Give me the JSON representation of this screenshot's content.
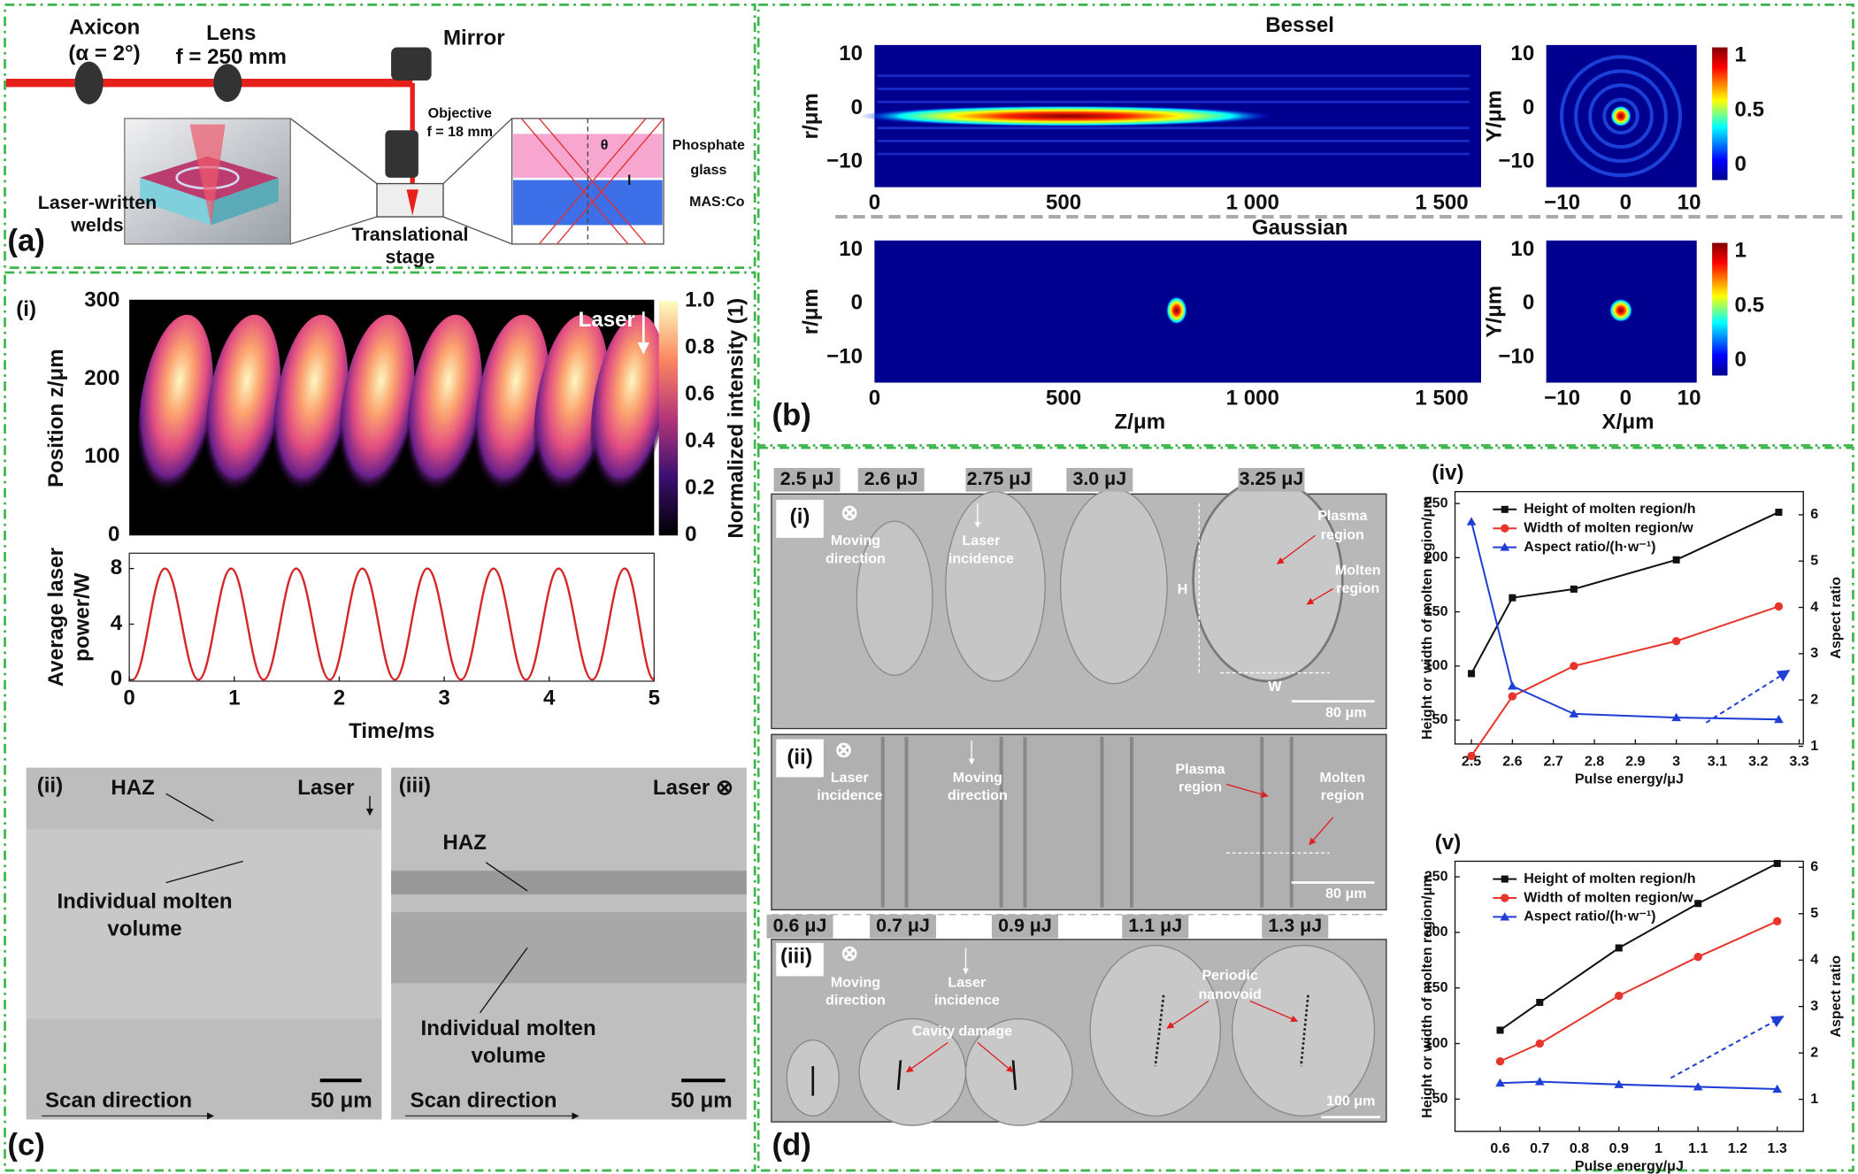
{
  "panel_a": {
    "label": "(a)",
    "axicon": "Axicon",
    "axicon_angle": "(α = 2°)",
    "lens": "Lens",
    "lens_f": "f = 250 mm",
    "mirror": "Mirror",
    "objective": "Objective",
    "objective_f": "f = 18 mm",
    "phosphate": [
      "Phosphate",
      "glass"
    ],
    "mas": "MAS:Co",
    "welds": [
      "Laser-written",
      "welds"
    ],
    "stage": [
      "Translational",
      "stage"
    ],
    "theta": "θ",
    "l": "l"
  },
  "panel_b": {
    "label": "(b)",
    "bessel": "Bessel",
    "gaussian": "Gaussian",
    "r_axis": "r/μm",
    "y_axis": "Y/μm",
    "z_axis": "Z/μm",
    "x_axis": "X/μm",
    "zlim": [
      0,
      1604
    ],
    "zticks": [
      0,
      500,
      {
        "value": 1000,
        "label": "1 000"
      },
      {
        "value": 1500,
        "label": "1 500"
      }
    ],
    "rlim": [
      -14.7,
      11.8
    ],
    "rticks": [
      10,
      0,
      {
        "value": -10,
        "label": "−10"
      }
    ],
    "xlim": [
      -12.5,
      11.2
    ],
    "xticks": [
      {
        "value": -10,
        "label": "−10"
      },
      0,
      10
    ],
    "colorbar_lim": [
      -0.2,
      1.1
    ],
    "colorbar_ticks": [
      1,
      0.5,
      0
    ]
  },
  "panel_c": {
    "label": "(c)",
    "i": "(i)",
    "laser": "Laser",
    "position_axis": "Position z/μm",
    "zlim": [
      0,
      300
    ],
    "zticks": [
      300,
      200,
      100,
      0
    ],
    "intensity_axis": "Normalized intensity (1)",
    "intensity_lim": [
      0,
      1
    ],
    "intensity_ticks": [
      {
        "value": 1,
        "label": "1.0"
      },
      0.8,
      0.6,
      0.4,
      0.2,
      0
    ],
    "ii": "(ii)",
    "iii": "(iii)",
    "haz": "HAZ",
    "laser_ii": "Laser",
    "laser_iii": "Laser ⊗",
    "molten": [
      "Individual molten",
      "volume"
    ],
    "scan": "Scan direction",
    "scale": "50 μm"
  },
  "panel_d": {
    "label": "(d)",
    "cross": "⊗",
    "energies_top": [
      "2.5 μJ",
      "2.6 μJ",
      "2.75 μJ",
      "3.0 μJ",
      "3.25 μJ"
    ],
    "energies_bottom": [
      "0.6 μJ",
      "0.7 μJ",
      "0.9 μJ",
      "1.1 μJ",
      "1.3 μJ"
    ],
    "i": "(i)",
    "ii": "(ii)",
    "iii": "(iii)",
    "moving": [
      "Moving",
      "direction"
    ],
    "incidence": [
      "Laser",
      "incidence"
    ],
    "plasma": [
      "Plasma",
      "region"
    ],
    "molten": [
      "Molten",
      "region"
    ],
    "h": "H",
    "w": "W",
    "scale_80": "80 μm",
    "cavity": "Cavity damage",
    "nanovoid": [
      "Periodic",
      "nanovoid"
    ],
    "scale_100": "100 μm"
  },
  "chart_data": [
    {
      "type": "line",
      "y_label": [
        "Average laser",
        "power/W"
      ],
      "x_label": "Time/ms",
      "x": [
        0.03,
        0.34,
        0.66,
        0.97,
        1.28,
        1.59,
        1.91,
        2.22,
        2.53,
        2.84,
        3.16,
        3.47,
        3.78,
        4.09,
        4.41,
        4.72,
        5.0
      ],
      "series": [
        {
          "color": "#d62728",
          "values": [
            0,
            8,
            0,
            8,
            0,
            8,
            0,
            8,
            0,
            8,
            0,
            8,
            0,
            8,
            0,
            8,
            0
          ]
        }
      ],
      "xlim": [
        0,
        5
      ],
      "xticks": [
        0,
        1,
        2,
        3,
        4,
        5
      ],
      "ylim": [
        -0.1,
        9.1
      ],
      "yticks": [
        8,
        4,
        0
      ]
    },
    {
      "type": "line",
      "panel": "(iv)",
      "x_label": "Pulse energy/μJ",
      "y_label": "Height or width of molten region/μm",
      "y2_label": "Aspect ratio",
      "x": [
        2.5,
        2.6,
        2.75,
        3.0,
        3.25
      ],
      "series": [
        {
          "name": "Height of molten region/h",
          "color": "#111111",
          "marker": "square",
          "values": [
            93,
            163,
            171,
            198,
            242
          ]
        },
        {
          "name": "Width of molten region/w",
          "color": "#e8352b",
          "marker": "circle",
          "values": [
            17,
            72,
            100,
            123,
            155
          ]
        },
        {
          "name": "Aspect ratio/(h·w⁻¹)",
          "color": "#1f3ed6",
          "marker": "triangle",
          "axis": "y2",
          "values": [
            5.85,
            2.3,
            1.7,
            1.62,
            1.58
          ]
        }
      ],
      "xlim": [
        2.46,
        3.31
      ],
      "xticks": [
        2.5,
        2.6,
        2.7,
        2.8,
        2.9,
        3.0,
        3.1,
        3.2,
        3.3
      ],
      "ylim": [
        28,
        261
      ],
      "yticks": [
        50,
        100,
        150,
        200,
        250
      ],
      "y2lim": [
        1.05,
        6.5
      ],
      "y2ticks": [
        1,
        2,
        3,
        4,
        5,
        6
      ]
    },
    {
      "type": "line",
      "panel": "(v)",
      "x_label": "Pulse energy/μJ",
      "y_label": "Height or width of molten region/μm",
      "y2_label": "Aspect ratio",
      "x": [
        0.6,
        0.7,
        0.9,
        1.1,
        1.3
      ],
      "series": [
        {
          "name": "Height of molten region/h",
          "color": "#111111",
          "marker": "square",
          "values": [
            112,
            137,
            186,
            226,
            262
          ]
        },
        {
          "name": "Width of molten region/w",
          "color": "#e8352b",
          "marker": "circle",
          "values": [
            84,
            100,
            143,
            178,
            210
          ]
        },
        {
          "name": "Aspect ratio/(h·w⁻¹)",
          "color": "#1f3ed6",
          "marker": "triangle",
          "axis": "y2",
          "values": [
            1.35,
            1.38,
            1.32,
            1.27,
            1.22
          ]
        }
      ],
      "xlim": [
        0.486,
        1.366
      ],
      "xticks": [
        0.6,
        0.7,
        0.8,
        0.9,
        1.0,
        1.1,
        1.2,
        1.3
      ],
      "ylim": [
        21,
        264
      ],
      "yticks": [
        50,
        100,
        150,
        200,
        250
      ],
      "y2lim": [
        0.31,
        6.13
      ],
      "y2ticks": [
        1,
        2,
        3,
        4,
        5,
        6
      ]
    }
  ]
}
